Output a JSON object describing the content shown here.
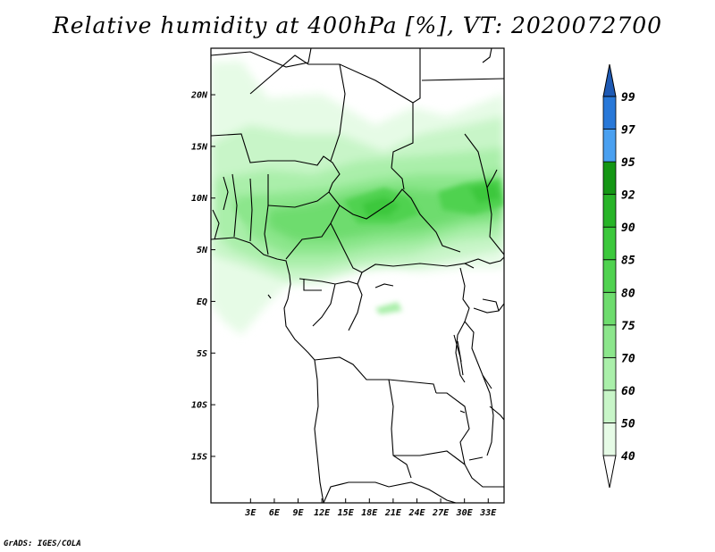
{
  "title": "Relative humidity at 400hPa [%], VT: 2020072700",
  "credit": "GrADS: IGES/COLA",
  "map": {
    "lon_range": [
      -2,
      35
    ],
    "lat_range": [
      -19.5,
      24.5
    ],
    "lon_ticks": [
      {
        "value": 3,
        "label": "3E"
      },
      {
        "value": 6,
        "label": "6E"
      },
      {
        "value": 9,
        "label": "9E"
      },
      {
        "value": 12,
        "label": "12E"
      },
      {
        "value": 15,
        "label": "15E"
      },
      {
        "value": 18,
        "label": "18E"
      },
      {
        "value": 21,
        "label": "21E"
      },
      {
        "value": 24,
        "label": "24E"
      },
      {
        "value": 27,
        "label": "27E"
      },
      {
        "value": 30,
        "label": "30E"
      },
      {
        "value": 33,
        "label": "33E"
      }
    ],
    "lat_ticks": [
      {
        "value": 20,
        "label": "20N"
      },
      {
        "value": 15,
        "label": "15N"
      },
      {
        "value": 10,
        "label": "10N"
      },
      {
        "value": 5,
        "label": "5N"
      },
      {
        "value": 0,
        "label": "EQ"
      },
      {
        "value": -5,
        "label": "5S"
      },
      {
        "value": -10,
        "label": "10S"
      },
      {
        "value": -15,
        "label": "15S"
      }
    ]
  },
  "colorbar": {
    "levels": [
      {
        "label": "40",
        "color": "#e6fbe6"
      },
      {
        "label": "50",
        "color": "#c8f5c8"
      },
      {
        "label": "60",
        "color": "#aaefaa"
      },
      {
        "label": "70",
        "color": "#8ce68c"
      },
      {
        "label": "75",
        "color": "#6edc6e"
      },
      {
        "label": "80",
        "color": "#50d250"
      },
      {
        "label": "85",
        "color": "#3cc83c"
      },
      {
        "label": "90",
        "color": "#28b428"
      },
      {
        "label": "92",
        "color": "#149614"
      },
      {
        "label": "95",
        "color": "#4aa0f0"
      },
      {
        "label": "97",
        "color": "#2878d8"
      },
      {
        "label": "99",
        "color": "#1e5ab4"
      }
    ],
    "below_color": "#ffffff"
  }
}
